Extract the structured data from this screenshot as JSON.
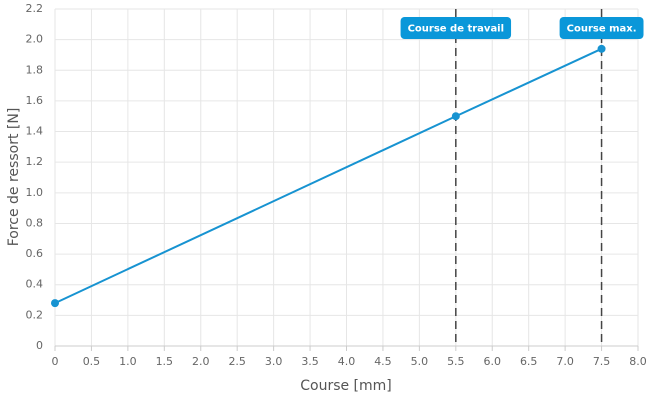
{
  "chart_data": {
    "type": "line",
    "x_label": "Course [mm]",
    "y_label": "Force de ressort [N]",
    "x": [
      0,
      5.5,
      7.5
    ],
    "series": [
      {
        "color": "#1793d1",
        "values": [
          0.28,
          1.5,
          1.94
        ]
      }
    ],
    "xlim": [
      0,
      8
    ],
    "ylim": [
      0,
      2.2
    ],
    "xticks": [
      0,
      0.5,
      {
        "value": 1,
        "label": "1.0"
      },
      1.5,
      {
        "value": 2,
        "label": "2.0"
      },
      2.5,
      {
        "value": 3,
        "label": "3.0"
      },
      3.5,
      {
        "value": 4,
        "label": "4.0"
      },
      4.5,
      {
        "value": 5,
        "label": "5.0"
      },
      5.5,
      {
        "value": 6,
        "label": "6.0"
      },
      6.5,
      {
        "value": 7,
        "label": "7.0"
      },
      7.5,
      {
        "value": 8,
        "label": "8.0"
      }
    ],
    "yticks": [
      0,
      0.2,
      0.4,
      0.6,
      0.8,
      {
        "value": 1,
        "label": "1.0"
      },
      1.2,
      1.4,
      1.6,
      1.8,
      {
        "value": 2,
        "label": "2.0"
      },
      2.2
    ],
    "grid": true,
    "annotations": [
      {
        "x": 5.5,
        "label": "Course de travail"
      },
      {
        "x": 7.5,
        "label": "Course max."
      }
    ],
    "annotation_color": "#0a97d9"
  }
}
